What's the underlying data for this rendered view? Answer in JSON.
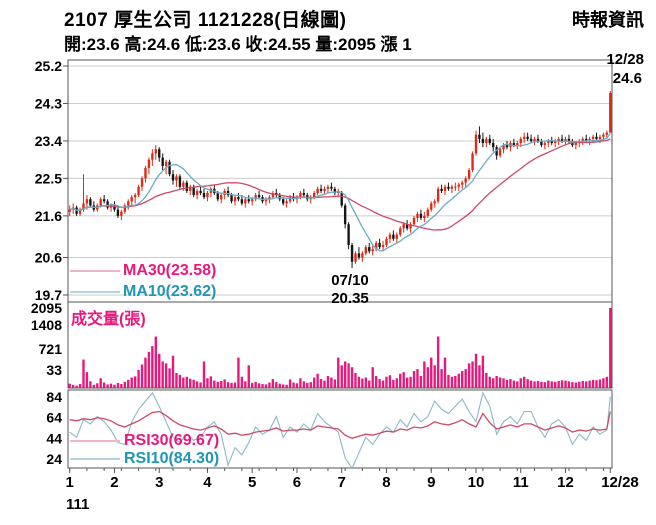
{
  "header": {
    "title": "2107  厚生公司 1121228(日線圖)",
    "source": "時報資訊",
    "stats": "開:23.6 高:24.6 低:23.6 收:24.55 量:2095 漲 1"
  },
  "chart_data": {
    "type": "candlestick",
    "title": "2107 厚生公司 1121228 日線圖",
    "price_axis_ticks": [
      25.2,
      24.3,
      23.4,
      22.5,
      21.6,
      20.6,
      19.7
    ],
    "volume_axis_ticks": [
      2095,
      1408,
      721,
      33
    ],
    "rsi_axis_ticks": [
      84,
      64,
      44,
      24
    ],
    "month_ticks": [
      {
        "label": "1",
        "i": 0
      },
      {
        "label": "2",
        "i": 13
      },
      {
        "label": "3",
        "i": 26
      },
      {
        "label": "4",
        "i": 40
      },
      {
        "label": "5",
        "i": 53
      },
      {
        "label": "6",
        "i": 66
      },
      {
        "label": "7",
        "i": 79
      },
      {
        "label": "8",
        "i": 92
      },
      {
        "label": "9",
        "i": 105
      },
      {
        "label": "10",
        "i": 118
      },
      {
        "label": "11",
        "i": 131
      },
      {
        "label": "12",
        "i": 144
      },
      {
        "label": "12/28",
        "i": 157
      }
    ],
    "year_label": "111",
    "annotations": {
      "last_date": "12/28",
      "last_high": "24.6",
      "low_date": "07/10",
      "low_price": "20.35"
    },
    "legend": {
      "ma30": "MA30(23.58)",
      "ma10": "MA10(23.62)",
      "volume_title": "成交量(張)",
      "rsi30": "RSI30(69.67)",
      "rsi10": "RSI10(84.30)"
    },
    "colors": {
      "up": "#dd2b17",
      "down": "#161616",
      "ma30": "#cc4a68",
      "ma10": "#6aacc2",
      "volume": "#e6197d",
      "rsi30": "#cc4a68",
      "rsi10": "#8cb8c6",
      "label_pink": "#e6197d",
      "label_cyan": "#1e96b4",
      "grid": "#cccccc",
      "border": "#555555"
    },
    "candles": [
      [
        21.7,
        21.85,
        21.6,
        21.75
      ],
      [
        21.75,
        21.9,
        21.65,
        21.8
      ],
      [
        21.8,
        21.85,
        21.6,
        21.65
      ],
      [
        21.65,
        21.8,
        21.6,
        21.75
      ],
      [
        21.75,
        22.6,
        21.7,
        21.9
      ],
      [
        21.9,
        22.1,
        21.75,
        22.0
      ],
      [
        22.0,
        22.05,
        21.8,
        21.85
      ],
      [
        21.85,
        21.95,
        21.7,
        21.75
      ],
      [
        21.75,
        21.9,
        21.7,
        21.85
      ],
      [
        21.85,
        22.05,
        21.8,
        22.0
      ],
      [
        22.0,
        22.1,
        21.9,
        21.95
      ],
      [
        21.95,
        22.0,
        21.75,
        21.8
      ],
      [
        21.8,
        21.9,
        21.7,
        21.85
      ],
      [
        21.85,
        21.95,
        21.7,
        21.75
      ],
      [
        21.75,
        21.8,
        21.55,
        21.6
      ],
      [
        21.6,
        21.75,
        21.5,
        21.7
      ],
      [
        21.7,
        21.9,
        21.65,
        21.85
      ],
      [
        21.85,
        22.0,
        21.75,
        21.95
      ],
      [
        21.95,
        22.1,
        21.85,
        22.05
      ],
      [
        22.05,
        22.15,
        21.9,
        22.1
      ],
      [
        22.1,
        22.35,
        22.05,
        22.3
      ],
      [
        22.3,
        22.55,
        22.2,
        22.5
      ],
      [
        22.5,
        22.8,
        22.4,
        22.75
      ],
      [
        22.75,
        23.0,
        22.6,
        22.95
      ],
      [
        22.95,
        23.2,
        22.8,
        23.1
      ],
      [
        23.1,
        23.3,
        22.95,
        23.2
      ],
      [
        23.2,
        23.25,
        22.9,
        23.0
      ],
      [
        23.0,
        23.1,
        22.7,
        22.8
      ],
      [
        22.8,
        22.95,
        22.6,
        22.9
      ],
      [
        22.9,
        22.95,
        22.55,
        22.6
      ],
      [
        22.6,
        22.7,
        22.35,
        22.45
      ],
      [
        22.45,
        22.6,
        22.3,
        22.55
      ],
      [
        22.55,
        22.6,
        22.25,
        22.3
      ],
      [
        22.3,
        22.45,
        22.2,
        22.4
      ],
      [
        22.4,
        22.45,
        22.15,
        22.2
      ],
      [
        22.2,
        22.35,
        22.1,
        22.3
      ],
      [
        22.3,
        22.35,
        22.05,
        22.1
      ],
      [
        22.1,
        22.25,
        22.0,
        22.2
      ],
      [
        22.2,
        22.3,
        22.1,
        22.15
      ],
      [
        22.15,
        22.25,
        22.0,
        22.05
      ],
      [
        22.05,
        22.2,
        21.95,
        22.15
      ],
      [
        22.15,
        22.3,
        22.05,
        22.25
      ],
      [
        22.25,
        22.35,
        22.1,
        22.15
      ],
      [
        22.15,
        22.2,
        21.95,
        22.0
      ],
      [
        22.0,
        22.15,
        21.9,
        22.1
      ],
      [
        22.1,
        22.25,
        22.0,
        22.2
      ],
      [
        22.2,
        22.3,
        22.05,
        22.1
      ],
      [
        22.1,
        22.15,
        21.9,
        21.95
      ],
      [
        21.95,
        22.1,
        21.85,
        22.05
      ],
      [
        22.05,
        22.15,
        21.95,
        22.0
      ],
      [
        22.0,
        22.1,
        21.85,
        21.9
      ],
      [
        21.9,
        22.05,
        21.8,
        22.0
      ],
      [
        22.0,
        22.1,
        21.9,
        21.95
      ],
      [
        21.95,
        22.05,
        21.85,
        22.0
      ],
      [
        22.0,
        22.15,
        21.95,
        22.1
      ],
      [
        22.1,
        22.2,
        22.0,
        22.05
      ],
      [
        22.05,
        22.1,
        21.9,
        21.95
      ],
      [
        21.95,
        22.05,
        21.85,
        22.0
      ],
      [
        22.0,
        22.1,
        21.9,
        22.05
      ],
      [
        22.05,
        22.2,
        22.0,
        22.15
      ],
      [
        22.15,
        22.25,
        22.05,
        22.1
      ],
      [
        22.1,
        22.15,
        21.95,
        22.0
      ],
      [
        22.0,
        22.05,
        21.85,
        21.9
      ],
      [
        21.9,
        22.0,
        21.8,
        21.95
      ],
      [
        21.95,
        22.1,
        21.9,
        22.05
      ],
      [
        22.05,
        22.15,
        21.95,
        22.0
      ],
      [
        22.0,
        22.1,
        21.9,
        22.05
      ],
      [
        22.05,
        22.2,
        22.0,
        22.15
      ],
      [
        22.15,
        22.25,
        22.05,
        22.1
      ],
      [
        22.1,
        22.15,
        21.95,
        22.0
      ],
      [
        22.0,
        22.1,
        21.9,
        22.05
      ],
      [
        22.05,
        22.2,
        22.0,
        22.15
      ],
      [
        22.15,
        22.3,
        22.1,
        22.25
      ],
      [
        22.25,
        22.35,
        22.15,
        22.2
      ],
      [
        22.2,
        22.3,
        22.1,
        22.25
      ],
      [
        22.25,
        22.35,
        22.15,
        22.3
      ],
      [
        22.3,
        22.4,
        22.2,
        22.25
      ],
      [
        22.25,
        22.3,
        22.1,
        22.15
      ],
      [
        22.15,
        22.25,
        22.05,
        22.2
      ],
      [
        22.15,
        22.2,
        21.8,
        21.85
      ],
      [
        21.85,
        21.9,
        21.3,
        21.4
      ],
      [
        21.4,
        21.45,
        20.8,
        20.9
      ],
      [
        20.9,
        20.95,
        20.35,
        20.5
      ],
      [
        20.5,
        20.75,
        20.45,
        20.7
      ],
      [
        20.7,
        20.85,
        20.55,
        20.6
      ],
      [
        20.6,
        20.75,
        20.5,
        20.7
      ],
      [
        20.7,
        20.9,
        20.65,
        20.85
      ],
      [
        20.85,
        20.95,
        20.7,
        20.75
      ],
      [
        20.75,
        20.9,
        20.65,
        20.8
      ],
      [
        20.8,
        21.0,
        20.75,
        20.95
      ],
      [
        20.95,
        21.05,
        20.8,
        20.85
      ],
      [
        20.85,
        21.0,
        20.75,
        20.9
      ],
      [
        20.9,
        21.1,
        20.85,
        21.05
      ],
      [
        21.05,
        21.2,
        20.95,
        21.15
      ],
      [
        21.15,
        21.25,
        21.0,
        21.05
      ],
      [
        21.05,
        21.2,
        20.95,
        21.15
      ],
      [
        21.15,
        21.35,
        21.1,
        21.3
      ],
      [
        21.3,
        21.45,
        21.2,
        21.4
      ],
      [
        21.4,
        21.5,
        21.25,
        21.3
      ],
      [
        21.3,
        21.45,
        21.2,
        21.4
      ],
      [
        21.4,
        21.6,
        21.35,
        21.55
      ],
      [
        21.55,
        21.7,
        21.45,
        21.65
      ],
      [
        21.65,
        21.75,
        21.5,
        21.55
      ],
      [
        21.55,
        21.7,
        21.45,
        21.6
      ],
      [
        21.6,
        21.8,
        21.55,
        21.75
      ],
      [
        21.75,
        21.95,
        21.7,
        21.9
      ],
      [
        21.9,
        22.0,
        21.8,
        21.95
      ],
      [
        21.95,
        22.3,
        21.9,
        22.25
      ],
      [
        22.25,
        22.35,
        22.15,
        22.2
      ],
      [
        22.2,
        22.35,
        22.1,
        22.3
      ],
      [
        22.3,
        22.4,
        22.2,
        22.25
      ],
      [
        22.25,
        22.35,
        22.15,
        22.3
      ],
      [
        22.3,
        22.4,
        22.2,
        22.3
      ],
      [
        22.3,
        22.4,
        22.2,
        22.35
      ],
      [
        22.35,
        22.45,
        22.25,
        22.4
      ],
      [
        22.4,
        22.55,
        22.3,
        22.5
      ],
      [
        22.5,
        22.75,
        22.45,
        22.7
      ],
      [
        22.7,
        23.15,
        22.65,
        23.1
      ],
      [
        23.1,
        23.65,
        23.05,
        23.55
      ],
      [
        23.55,
        23.75,
        23.35,
        23.45
      ],
      [
        23.45,
        23.6,
        23.25,
        23.35
      ],
      [
        23.35,
        23.5,
        23.25,
        23.45
      ],
      [
        23.45,
        23.55,
        23.3,
        23.35
      ],
      [
        23.35,
        23.45,
        23.15,
        23.25
      ],
      [
        23.25,
        23.3,
        22.95,
        23.05
      ],
      [
        23.05,
        23.25,
        23.0,
        23.2
      ],
      [
        23.2,
        23.35,
        23.1,
        23.3
      ],
      [
        23.3,
        23.4,
        23.2,
        23.25
      ],
      [
        23.25,
        23.4,
        23.15,
        23.35
      ],
      [
        23.35,
        23.45,
        23.25,
        23.3
      ],
      [
        23.3,
        23.4,
        23.2,
        23.35
      ],
      [
        23.35,
        23.5,
        23.25,
        23.45
      ],
      [
        23.45,
        23.6,
        23.35,
        23.5
      ],
      [
        23.5,
        23.6,
        23.4,
        23.45
      ],
      [
        23.45,
        23.55,
        23.35,
        23.4
      ],
      [
        23.4,
        23.5,
        23.3,
        23.45
      ],
      [
        23.45,
        23.55,
        23.35,
        23.4
      ],
      [
        23.4,
        23.45,
        23.25,
        23.3
      ],
      [
        23.3,
        23.4,
        23.2,
        23.35
      ],
      [
        23.35,
        23.45,
        23.25,
        23.4
      ],
      [
        23.4,
        23.5,
        23.3,
        23.35
      ],
      [
        23.35,
        23.45,
        23.25,
        23.4
      ],
      [
        23.4,
        23.5,
        23.3,
        23.45
      ],
      [
        23.45,
        23.55,
        23.35,
        23.4
      ],
      [
        23.4,
        23.5,
        23.3,
        23.45
      ],
      [
        23.45,
        23.55,
        23.35,
        23.4
      ],
      [
        23.4,
        23.45,
        23.25,
        23.3
      ],
      [
        23.3,
        23.4,
        23.2,
        23.35
      ],
      [
        23.35,
        23.45,
        23.25,
        23.4
      ],
      [
        23.4,
        23.5,
        23.3,
        23.45
      ],
      [
        23.45,
        23.55,
        23.35,
        23.4
      ],
      [
        23.4,
        23.5,
        23.3,
        23.45
      ],
      [
        23.45,
        23.55,
        23.35,
        23.5
      ],
      [
        23.5,
        23.6,
        23.4,
        23.45
      ],
      [
        23.45,
        23.55,
        23.35,
        23.5
      ],
      [
        23.5,
        23.6,
        23.4,
        23.55
      ],
      [
        23.55,
        23.65,
        23.45,
        23.6
      ],
      [
        23.6,
        24.6,
        23.6,
        24.55
      ]
    ],
    "volumes": [
      120,
      90,
      70,
      110,
      750,
      420,
      180,
      90,
      130,
      260,
      150,
      100,
      120,
      90,
      140,
      110,
      170,
      220,
      280,
      310,
      480,
      620,
      800,
      950,
      1100,
      1350,
      900,
      700,
      650,
      520,
      850,
      400,
      350,
      280,
      300,
      250,
      220,
      180,
      150,
      700,
      260,
      310,
      200,
      170,
      190,
      230,
      160,
      140,
      150,
      800,
      300,
      180,
      600,
      140,
      170,
      130,
      110,
      100,
      150,
      240,
      160,
      120,
      100,
      90,
      230,
      150,
      130,
      260,
      180,
      140,
      160,
      280,
      380,
      240,
      200,
      320,
      280,
      230,
      800,
      600,
      700,
      650,
      550,
      400,
      300,
      250,
      280,
      200,
      550,
      320,
      240,
      200,
      300,
      340,
      220,
      260,
      380,
      420,
      280,
      300,
      450,
      500,
      320,
      700,
      550,
      800,
      600,
      1350,
      500,
      800,
      350,
      300,
      320,
      380,
      450,
      500,
      650,
      700,
      900,
      600,
      850,
      400,
      300,
      260,
      320,
      280,
      260,
      220,
      240,
      200,
      180,
      260,
      300,
      240,
      200,
      180,
      190,
      170,
      160,
      200,
      180,
      170,
      190,
      210,
      200,
      180,
      160,
      150,
      170,
      190,
      180,
      200,
      220,
      210,
      230,
      260,
      300,
      2095
    ],
    "rsi10": [
      50,
      45,
      62,
      58,
      65,
      60,
      52,
      40,
      38,
      60,
      72,
      80,
      88,
      75,
      60,
      45,
      40,
      48,
      42,
      45,
      55,
      60,
      48,
      18,
      35,
      28,
      40,
      55,
      48,
      52,
      65,
      45,
      55,
      50,
      58,
      52,
      68,
      60,
      55,
      50,
      25,
      15,
      30,
      45,
      38,
      48,
      55,
      50,
      62,
      55,
      68,
      60,
      65,
      80,
      72,
      68,
      75,
      82,
      70,
      60,
      88,
      75,
      48,
      60,
      65,
      58,
      70,
      70,
      55,
      45,
      58,
      62,
      55,
      38,
      48,
      42,
      55,
      48,
      52,
      84
    ],
    "rsi30": [
      62,
      61,
      63,
      62,
      64,
      63,
      61,
      57,
      55,
      58,
      61,
      65,
      69,
      70,
      66,
      61,
      57,
      55,
      53,
      52,
      54,
      56,
      53,
      48,
      49,
      47,
      48,
      50,
      51,
      52,
      54,
      51,
      52,
      52,
      53,
      52,
      56,
      55,
      54,
      53,
      47,
      44,
      46,
      48,
      47,
      49,
      51,
      50,
      53,
      52,
      55,
      54,
      56,
      60,
      58,
      57,
      59,
      62,
      58,
      55,
      68,
      59,
      53,
      55,
      57,
      55,
      58,
      58,
      55,
      52,
      54,
      56,
      54,
      50,
      52,
      51,
      53,
      52,
      53,
      70
    ]
  }
}
